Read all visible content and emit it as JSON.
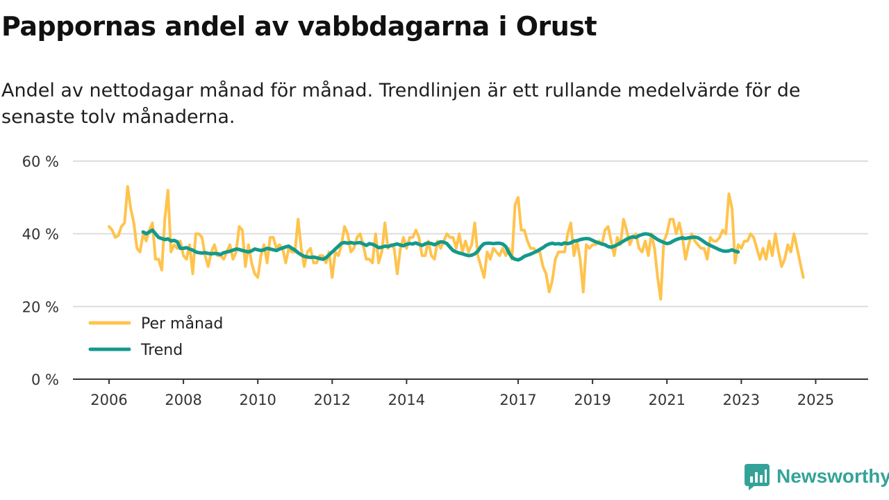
{
  "title": "Pappornas andel av vabbdagarna i Orust",
  "subtitle": "Andel av nettodagar månad för månad. Trendlinjen är ett rullande medelvärde för de senaste tolv månaderna.",
  "brand": "Newsworthy",
  "colors": {
    "monthly": "#ffc34d",
    "trend": "#13998c",
    "grid": "#dddddd",
    "axis": "#333333",
    "brand": "#33a398"
  },
  "chart_data": {
    "type": "line",
    "title": "Pappornas andel av vabbdagarna i Orust",
    "xlabel": "",
    "ylabel": "",
    "ylim": [
      0,
      60
    ],
    "xlim": [
      2006,
      2025.6
    ],
    "yticks": [
      0,
      20,
      40,
      60
    ],
    "ytick_labels": [
      "0 %",
      "20 %",
      "40 %",
      "60 %"
    ],
    "xticks": [
      2006,
      2008,
      2010,
      2012,
      2014,
      2017,
      2019,
      2021,
      2023,
      2025
    ],
    "xtick_labels": [
      "2006",
      "2008",
      "2010",
      "2012",
      "2014",
      "2017",
      "2019",
      "2021",
      "2023",
      "2025"
    ],
    "legend": {
      "position": "bottom-left",
      "entries": [
        "Per månad",
        "Trend"
      ]
    },
    "series": [
      {
        "name": "Per månad",
        "color": "#ffc34d",
        "x_start": 2006.0,
        "step": 0.0833333,
        "values": [
          42,
          41,
          39,
          39.5,
          42,
          43,
          53,
          47,
          43,
          36,
          35,
          40,
          38,
          41,
          43,
          33,
          33,
          30,
          44,
          52,
          35,
          37,
          36,
          38,
          34,
          33,
          37,
          29,
          40,
          40,
          39,
          34,
          31,
          35,
          37,
          34,
          34,
          33,
          35,
          37,
          33,
          35,
          42,
          41,
          31,
          37,
          32,
          29,
          28,
          34,
          37,
          32,
          39,
          39,
          36,
          37,
          36,
          32,
          36,
          35,
          35,
          44,
          36,
          31,
          35,
          36,
          32,
          32,
          34,
          34,
          32,
          35,
          28,
          35,
          34,
          37,
          42,
          40,
          35,
          36,
          39,
          40,
          37,
          33,
          33,
          32,
          40,
          32,
          35,
          43,
          36,
          37,
          36,
          29,
          36,
          39,
          36,
          39,
          39,
          41,
          39,
          34,
          34,
          38,
          34,
          33,
          38,
          36,
          38,
          40,
          39,
          39,
          36,
          40,
          35,
          38,
          35,
          37,
          43,
          34,
          31,
          28,
          35,
          33,
          36,
          35,
          34,
          36,
          34,
          36,
          33,
          48,
          50,
          41,
          41,
          38,
          36,
          36,
          35,
          35,
          31,
          29,
          24,
          27,
          33,
          35,
          35,
          35,
          40,
          43,
          34,
          38,
          33,
          24,
          37,
          36,
          37,
          37,
          38,
          37,
          41,
          42,
          38,
          34,
          39,
          37,
          44,
          41,
          37,
          39,
          40,
          36,
          35,
          38,
          34,
          40,
          36,
          28,
          22,
          38,
          40,
          44,
          44,
          40,
          43,
          39,
          33,
          37,
          40,
          38,
          37,
          36,
          36,
          33,
          39,
          38,
          38,
          39,
          41,
          40,
          51,
          47,
          32,
          37,
          36,
          38,
          38,
          40,
          39,
          36,
          33,
          36,
          33,
          38,
          34,
          40,
          35,
          31,
          33,
          37,
          35,
          40,
          36,
          32,
          28
        ]
      },
      {
        "name": "Trend",
        "color": "#13998c",
        "x_start": 2006.9167,
        "step": 0.0833333,
        "values": [
          40.5,
          40,
          40.5,
          41,
          40,
          39,
          38.7,
          38.4,
          38.6,
          38.0,
          38.2,
          37.8,
          36.0,
          36.0,
          36.2,
          35.8,
          35.5,
          35.0,
          34.8,
          34.7,
          34.8,
          34.6,
          34.5,
          34.6,
          34.5,
          34.3,
          34.8,
          35.0,
          35.2,
          35.5,
          35.8,
          35.7,
          35.4,
          35.2,
          35.0,
          35.3,
          35.8,
          35.6,
          35.4,
          35.6,
          36.0,
          35.8,
          35.6,
          35.4,
          35.8,
          36.1,
          36.4,
          36.6,
          36.0,
          35.5,
          34.8,
          34.2,
          33.8,
          33.6,
          33.5,
          33.6,
          33.4,
          33.2,
          33.0,
          33.4,
          34.2,
          35.0,
          35.8,
          36.6,
          37.4,
          37.6,
          37.4,
          37.6,
          37.4,
          37.5,
          37.6,
          37.2,
          36.8,
          37.3,
          37.1,
          36.7,
          36.2,
          36.3,
          36.6,
          36.5,
          36.8,
          37.0,
          37.2,
          36.9,
          36.7,
          37.1,
          37.3,
          37.2,
          37.5,
          37.1,
          36.8,
          37.2,
          37.5,
          37.3,
          37.0,
          37.4,
          37.8,
          37.7,
          37.3,
          36.3,
          35.4,
          35.0,
          34.7,
          34.5,
          34.2,
          34.0,
          34.1,
          34.5,
          35.2,
          36.5,
          37.3,
          37.4,
          37.4,
          37.3,
          37.4,
          37.4,
          37.2,
          36.5,
          34.8,
          33.5,
          33.0,
          32.8,
          33.2,
          33.8,
          34.1,
          34.4,
          34.8,
          35.2,
          35.7,
          36.2,
          36.8,
          37.2,
          37.4,
          37.2,
          37.3,
          37.1,
          37.5,
          37.3,
          37.5,
          38.0,
          38.1,
          38.4,
          38.6,
          38.7,
          38.6,
          38.2,
          37.8,
          37.5,
          37.2,
          37.0,
          36.5,
          36.3,
          36.6,
          37.0,
          37.5,
          38.0,
          38.5,
          38.9,
          39.2,
          39.0,
          39.5,
          39.8,
          40.0,
          39.9,
          39.6,
          39.0,
          38.4,
          38.0,
          37.6,
          37.3,
          37.5,
          38.0,
          38.4,
          38.7,
          38.9,
          38.7,
          38.9,
          39.0,
          39.1,
          38.9,
          38.4,
          37.8,
          37.2,
          36.8,
          36.4,
          36.0,
          35.6,
          35.3,
          35.2,
          35.3,
          35.6,
          35.2,
          35.0
        ]
      }
    ]
  }
}
